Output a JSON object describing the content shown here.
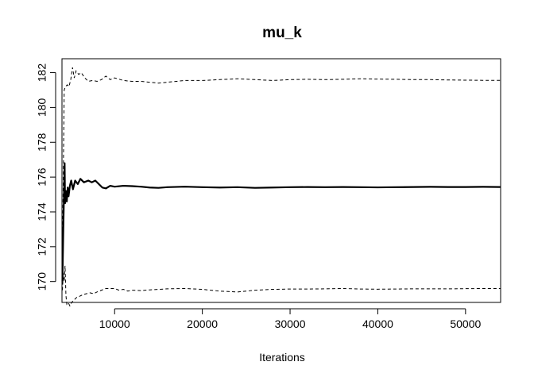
{
  "chart_data": {
    "type": "line",
    "title": "mu_k",
    "xlabel": "Iterations",
    "ylabel": "",
    "xlim": [
      4000,
      54000
    ],
    "ylim": [
      168.8,
      182.8
    ],
    "x_ticks": [
      10000,
      20000,
      30000,
      40000,
      50000
    ],
    "y_ticks": [
      170,
      172,
      174,
      176,
      178,
      180,
      182
    ],
    "grid": false,
    "series": [
      {
        "style": "solid",
        "points": [
          [
            4050,
            170.0
          ],
          [
            4150,
            173.0
          ],
          [
            4250,
            175.6
          ],
          [
            4300,
            176.8
          ],
          [
            4350,
            174.5
          ],
          [
            4450,
            175.2
          ],
          [
            4550,
            174.6
          ],
          [
            4650,
            175.4
          ],
          [
            4750,
            174.9
          ],
          [
            4900,
            175.5
          ],
          [
            5050,
            175.8
          ],
          [
            5250,
            175.3
          ],
          [
            5500,
            175.8
          ],
          [
            5800,
            175.6
          ],
          [
            6100,
            175.9
          ],
          [
            6500,
            175.7
          ],
          [
            7000,
            175.8
          ],
          [
            7400,
            175.7
          ],
          [
            7800,
            175.8
          ],
          [
            8200,
            175.6
          ],
          [
            8600,
            175.4
          ],
          [
            9000,
            175.35
          ],
          [
            9500,
            175.5
          ],
          [
            10000,
            175.45
          ],
          [
            11000,
            175.5
          ],
          [
            12000,
            175.48
          ],
          [
            13000,
            175.45
          ],
          [
            14000,
            175.4
          ],
          [
            15000,
            175.38
          ],
          [
            16000,
            175.42
          ],
          [
            18000,
            175.45
          ],
          [
            20000,
            175.42
          ],
          [
            22000,
            175.4
          ],
          [
            24000,
            175.42
          ],
          [
            26000,
            175.38
          ],
          [
            28000,
            175.4
          ],
          [
            30000,
            175.42
          ],
          [
            32000,
            175.43
          ],
          [
            34000,
            175.42
          ],
          [
            36000,
            175.43
          ],
          [
            38000,
            175.42
          ],
          [
            40000,
            175.41
          ],
          [
            42000,
            175.42
          ],
          [
            44000,
            175.43
          ],
          [
            46000,
            175.44
          ],
          [
            48000,
            175.43
          ],
          [
            50000,
            175.43
          ],
          [
            52000,
            175.44
          ],
          [
            54000,
            175.43
          ]
        ]
      },
      {
        "style": "dashed",
        "points": [
          [
            4050,
            172.0
          ],
          [
            4150,
            176.0
          ],
          [
            4250,
            181.0
          ],
          [
            4400,
            181.2
          ],
          [
            4600,
            181.3
          ],
          [
            4800,
            181.2
          ],
          [
            5000,
            181.6
          ],
          [
            5200,
            182.3
          ],
          [
            5400,
            181.7
          ],
          [
            5600,
            182.1
          ],
          [
            5900,
            181.9
          ],
          [
            6200,
            182.0
          ],
          [
            6600,
            181.7
          ],
          [
            7000,
            181.5
          ],
          [
            7500,
            181.55
          ],
          [
            8000,
            181.5
          ],
          [
            8500,
            181.6
          ],
          [
            9000,
            181.8
          ],
          [
            9500,
            181.6
          ],
          [
            10000,
            181.7
          ],
          [
            11000,
            181.55
          ],
          [
            12000,
            181.5
          ],
          [
            13000,
            181.5
          ],
          [
            14000,
            181.45
          ],
          [
            15000,
            181.4
          ],
          [
            16000,
            181.45
          ],
          [
            18000,
            181.55
          ],
          [
            20000,
            181.55
          ],
          [
            22000,
            181.6
          ],
          [
            24000,
            181.65
          ],
          [
            26000,
            181.6
          ],
          [
            28000,
            181.55
          ],
          [
            30000,
            181.6
          ],
          [
            32000,
            181.62
          ],
          [
            34000,
            181.6
          ],
          [
            36000,
            181.62
          ],
          [
            38000,
            181.65
          ],
          [
            40000,
            181.63
          ],
          [
            42000,
            181.62
          ],
          [
            44000,
            181.6
          ],
          [
            46000,
            181.6
          ],
          [
            48000,
            181.58
          ],
          [
            50000,
            181.57
          ],
          [
            52000,
            181.56
          ],
          [
            54000,
            181.56
          ]
        ]
      },
      {
        "style": "dashed",
        "points": [
          [
            4050,
            169.5
          ],
          [
            4150,
            170.5
          ],
          [
            4250,
            170.0
          ],
          [
            4350,
            170.9
          ],
          [
            4450,
            169.2
          ],
          [
            4550,
            168.7
          ],
          [
            4700,
            168.8
          ],
          [
            4900,
            168.6
          ],
          [
            5100,
            168.8
          ],
          [
            5400,
            168.95
          ],
          [
            5700,
            169.1
          ],
          [
            6000,
            169.15
          ],
          [
            6400,
            169.25
          ],
          [
            6800,
            169.3
          ],
          [
            7200,
            169.35
          ],
          [
            7600,
            169.3
          ],
          [
            8000,
            169.4
          ],
          [
            8500,
            169.5
          ],
          [
            9000,
            169.6
          ],
          [
            9500,
            169.6
          ],
          [
            10000,
            169.6
          ],
          [
            10500,
            169.5
          ],
          [
            11000,
            169.55
          ],
          [
            11500,
            169.45
          ],
          [
            12000,
            169.5
          ],
          [
            13000,
            169.48
          ],
          [
            14000,
            169.52
          ],
          [
            15000,
            169.55
          ],
          [
            16000,
            169.58
          ],
          [
            18000,
            169.6
          ],
          [
            20000,
            169.55
          ],
          [
            22000,
            169.45
          ],
          [
            24000,
            169.4
          ],
          [
            26000,
            169.5
          ],
          [
            28000,
            169.55
          ],
          [
            30000,
            169.57
          ],
          [
            32000,
            169.57
          ],
          [
            34000,
            169.58
          ],
          [
            36000,
            169.6
          ],
          [
            38000,
            169.57
          ],
          [
            40000,
            169.56
          ],
          [
            42000,
            169.57
          ],
          [
            44000,
            169.58
          ],
          [
            46000,
            169.58
          ],
          [
            48000,
            169.58
          ],
          [
            50000,
            169.59
          ],
          [
            52000,
            169.6
          ],
          [
            54000,
            169.6
          ]
        ]
      }
    ]
  }
}
